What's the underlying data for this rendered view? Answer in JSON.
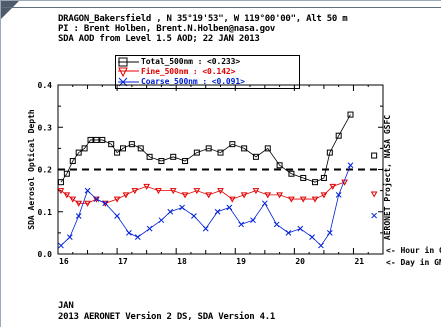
{
  "header": {
    "line1": "DRAGON_Bakersfield , N 35°19'53\", W 119°00'00\", Alt 50 m",
    "line2": "PI : Brent Holben, Brent.N.Holben@nasa.gov",
    "line3": "SDA AOD from Level 1.5 AOD; 22 JAN 2013"
  },
  "footer": {
    "month": "JAN",
    "credit": "2013 AERONET Version 2 DS, SDA Version 4.1"
  },
  "chart_data": {
    "type": "line",
    "title": "",
    "xlabel_hour": "<- Hour in GMT",
    "xlabel_day": "<- Day in GMT",
    "ylabel": "SDA Aerosol Optical Depth",
    "right_label": "AERONET Project, NASA GSFC",
    "xlim": [
      16,
      21.5
    ],
    "ylim": [
      0.0,
      0.4
    ],
    "x_ticks": [
      "16",
      "17",
      "18",
      "19",
      "20",
      "21"
    ],
    "y_ticks": [
      "0.0",
      "0.1",
      "0.2",
      "0.3",
      "0.4"
    ],
    "dashed_line_value": 0.2,
    "grid": false,
    "legend_position": "top",
    "legend": [
      {
        "label": "Total_500nm",
        "value": "<0.233>",
        "color": "#000000",
        "marker": "square"
      },
      {
        "label": "Fine_500nm",
        "value": "<0.142>",
        "color": "#e00000",
        "marker": "triangle-down"
      },
      {
        "label": "Coarse_500nm",
        "value": "<0.091>",
        "color": "#0020d8",
        "marker": "x"
      }
    ],
    "series": [
      {
        "name": "Total_500nm",
        "color": "#000000",
        "marker": "square",
        "points": [
          [
            16.05,
            0.17
          ],
          [
            16.15,
            0.19
          ],
          [
            16.25,
            0.22
          ],
          [
            16.35,
            0.24
          ],
          [
            16.45,
            0.25
          ],
          [
            16.55,
            0.27
          ],
          [
            16.65,
            0.27
          ],
          [
            16.75,
            0.27
          ],
          [
            16.9,
            0.26
          ],
          [
            17.0,
            0.24
          ],
          [
            17.1,
            0.25
          ],
          [
            17.25,
            0.26
          ],
          [
            17.4,
            0.25
          ],
          [
            17.55,
            0.23
          ],
          [
            17.75,
            0.22
          ],
          [
            17.95,
            0.23
          ],
          [
            18.15,
            0.22
          ],
          [
            18.35,
            0.24
          ],
          [
            18.55,
            0.25
          ],
          [
            18.75,
            0.24
          ],
          [
            18.95,
            0.26
          ],
          [
            19.15,
            0.25
          ],
          [
            19.35,
            0.23
          ],
          [
            19.55,
            0.25
          ],
          [
            19.75,
            0.21
          ],
          [
            19.95,
            0.19
          ],
          [
            20.15,
            0.18
          ],
          [
            20.35,
            0.17
          ],
          [
            20.5,
            0.18
          ],
          [
            20.6,
            0.24
          ],
          [
            20.75,
            0.28
          ],
          [
            20.95,
            0.33
          ]
        ],
        "daily_mean": 0.233
      },
      {
        "name": "Fine_500nm",
        "color": "#e00000",
        "marker": "triangle-down",
        "points": [
          [
            16.05,
            0.15
          ],
          [
            16.15,
            0.14
          ],
          [
            16.25,
            0.13
          ],
          [
            16.35,
            0.12
          ],
          [
            16.5,
            0.12
          ],
          [
            16.65,
            0.13
          ],
          [
            16.8,
            0.12
          ],
          [
            17.0,
            0.13
          ],
          [
            17.15,
            0.14
          ],
          [
            17.3,
            0.15
          ],
          [
            17.5,
            0.16
          ],
          [
            17.7,
            0.15
          ],
          [
            17.95,
            0.15
          ],
          [
            18.15,
            0.14
          ],
          [
            18.35,
            0.15
          ],
          [
            18.55,
            0.14
          ],
          [
            18.75,
            0.15
          ],
          [
            18.95,
            0.13
          ],
          [
            19.15,
            0.14
          ],
          [
            19.35,
            0.15
          ],
          [
            19.55,
            0.14
          ],
          [
            19.75,
            0.14
          ],
          [
            19.95,
            0.13
          ],
          [
            20.15,
            0.13
          ],
          [
            20.35,
            0.13
          ],
          [
            20.5,
            0.14
          ],
          [
            20.65,
            0.16
          ],
          [
            20.85,
            0.17
          ]
        ],
        "daily_mean": 0.142
      },
      {
        "name": "Coarse_500nm",
        "color": "#0020d8",
        "marker": "x",
        "points": [
          [
            16.05,
            0.02
          ],
          [
            16.2,
            0.04
          ],
          [
            16.35,
            0.09
          ],
          [
            16.5,
            0.15
          ],
          [
            16.65,
            0.13
          ],
          [
            16.8,
            0.12
          ],
          [
            17.0,
            0.09
          ],
          [
            17.2,
            0.05
          ],
          [
            17.35,
            0.04
          ],
          [
            17.55,
            0.06
          ],
          [
            17.75,
            0.08
          ],
          [
            17.9,
            0.1
          ],
          [
            18.1,
            0.11
          ],
          [
            18.3,
            0.09
          ],
          [
            18.5,
            0.06
          ],
          [
            18.7,
            0.1
          ],
          [
            18.9,
            0.11
          ],
          [
            19.1,
            0.07
          ],
          [
            19.3,
            0.08
          ],
          [
            19.5,
            0.12
          ],
          [
            19.7,
            0.07
          ],
          [
            19.9,
            0.05
          ],
          [
            20.1,
            0.06
          ],
          [
            20.3,
            0.04
          ],
          [
            20.45,
            0.02
          ],
          [
            20.6,
            0.05
          ],
          [
            20.75,
            0.14
          ],
          [
            20.95,
            0.21
          ]
        ],
        "daily_mean": 0.091
      }
    ]
  }
}
